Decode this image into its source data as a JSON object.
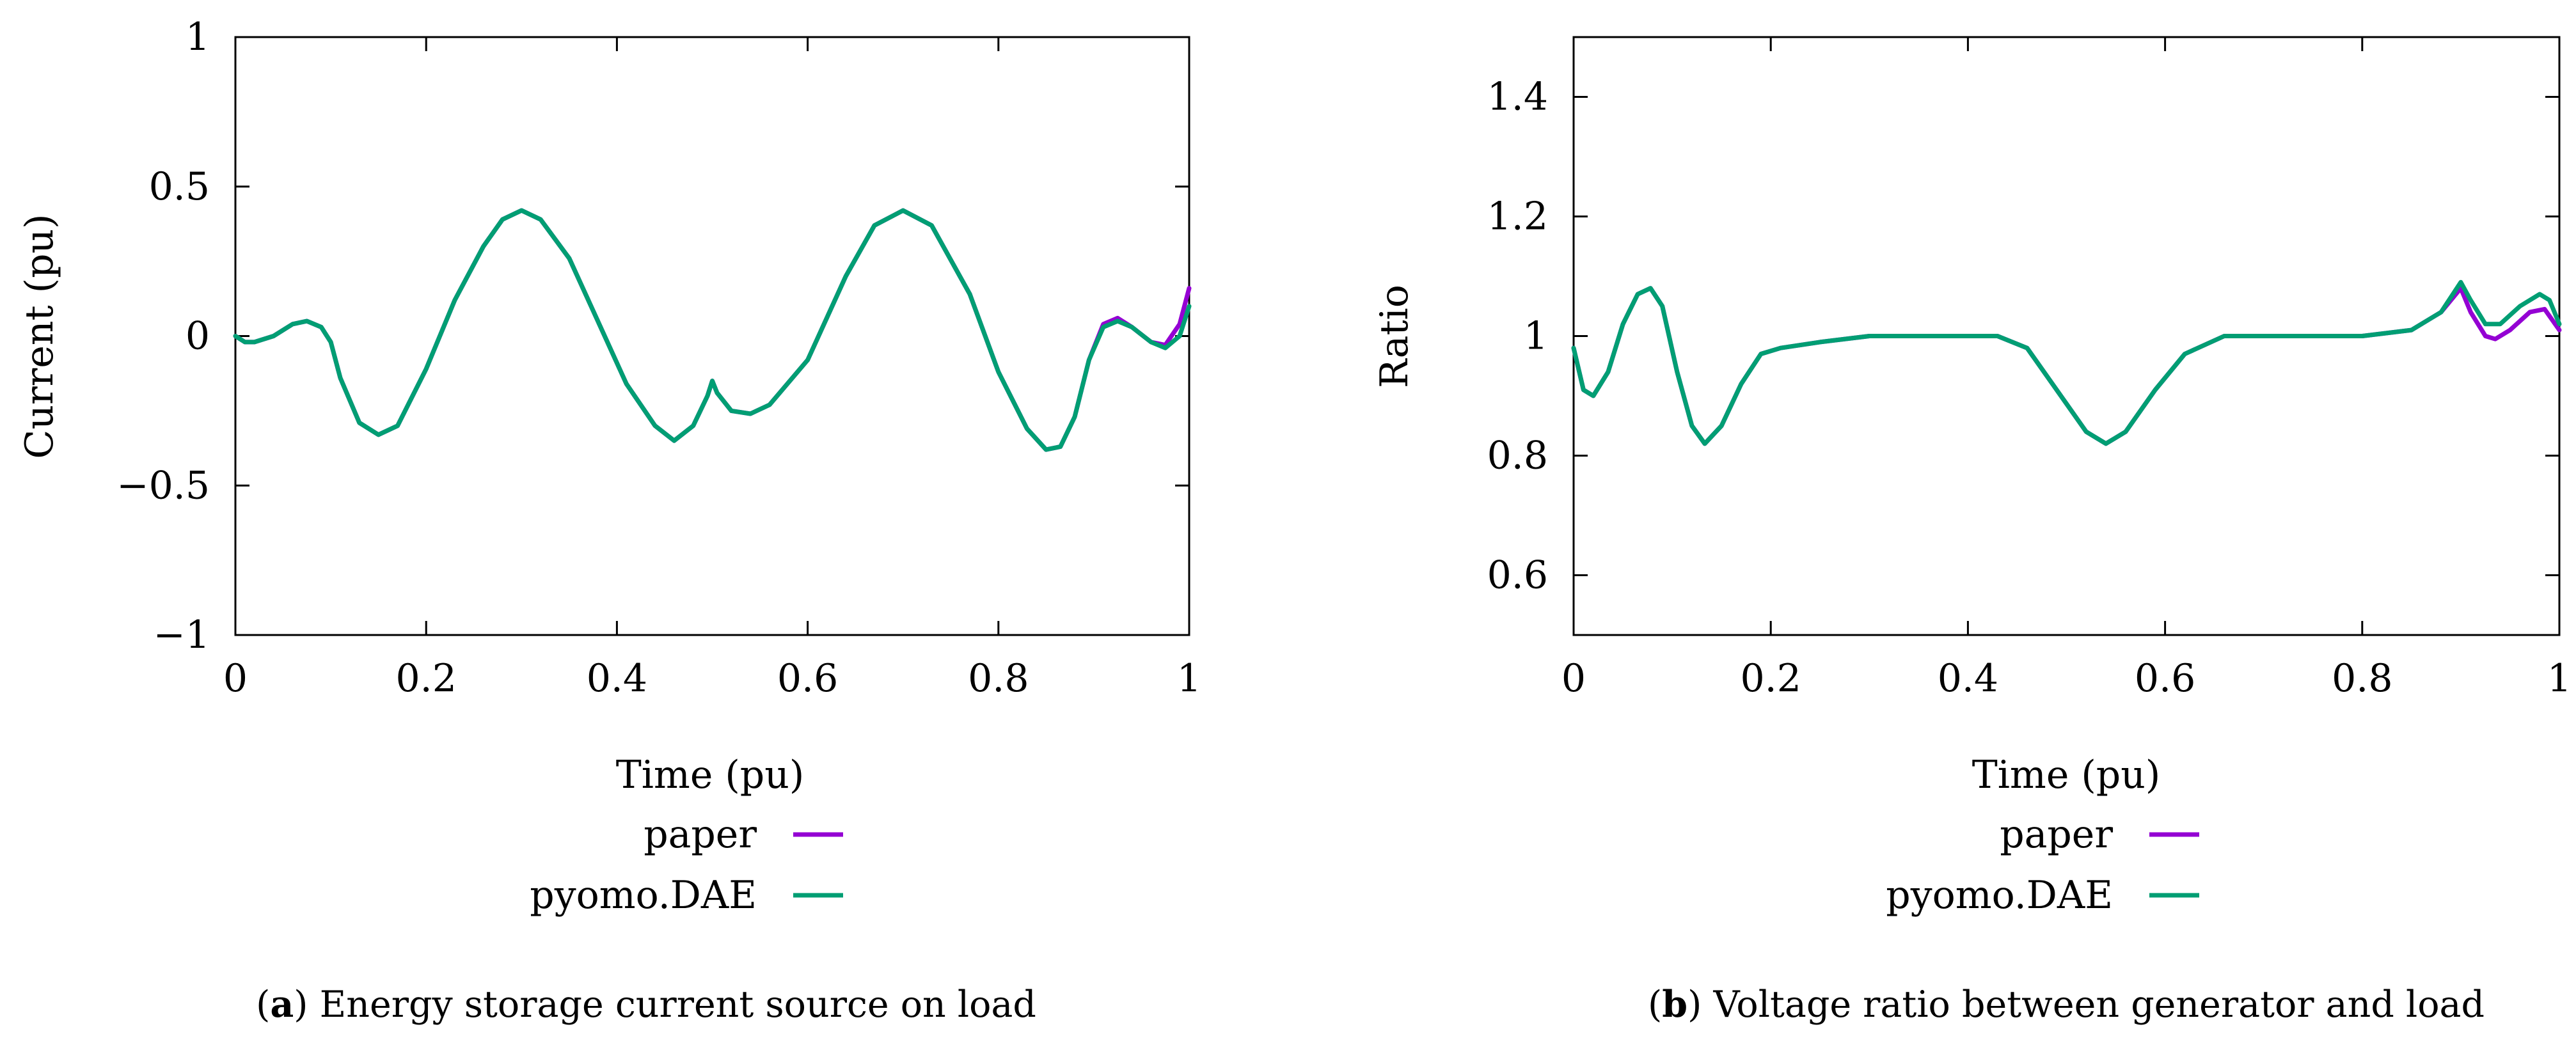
{
  "chart_data": [
    {
      "type": "line",
      "panel": "a",
      "xlabel": "Time (pu)",
      "ylabel": "Current (pu)",
      "xlim": [
        0,
        1
      ],
      "ylim": [
        -1,
        1
      ],
      "xticks": [
        0,
        0.2,
        0.4,
        0.6,
        0.8,
        1
      ],
      "xtick_labels": [
        "0",
        "0.2",
        "0.4",
        "0.6",
        "0.8",
        "1"
      ],
      "yticks": [
        -1,
        -0.5,
        0,
        0.5,
        1
      ],
      "ytick_labels": [
        "−1",
        "−0.5",
        "0",
        "0.5",
        "1"
      ],
      "caption_letter": "a",
      "caption_text": " Energy storage current source on load",
      "series": [
        {
          "name": "paper",
          "color": "#9400d3",
          "points": [
            [
              0,
              0
            ],
            [
              0.01,
              -0.02
            ],
            [
              0.02,
              -0.02
            ],
            [
              0.04,
              0.0
            ],
            [
              0.06,
              0.04
            ],
            [
              0.075,
              0.05
            ],
            [
              0.09,
              0.03
            ],
            [
              0.1,
              -0.02
            ],
            [
              0.11,
              -0.14
            ],
            [
              0.13,
              -0.29
            ],
            [
              0.15,
              -0.33
            ],
            [
              0.17,
              -0.3
            ],
            [
              0.2,
              -0.11
            ],
            [
              0.23,
              0.12
            ],
            [
              0.26,
              0.3
            ],
            [
              0.28,
              0.39
            ],
            [
              0.3,
              0.42
            ],
            [
              0.32,
              0.39
            ],
            [
              0.35,
              0.26
            ],
            [
              0.38,
              0.05
            ],
            [
              0.41,
              -0.16
            ],
            [
              0.44,
              -0.3
            ],
            [
              0.46,
              -0.35
            ],
            [
              0.48,
              -0.3
            ],
            [
              0.495,
              -0.2
            ],
            [
              0.5,
              -0.15
            ],
            [
              0.505,
              -0.19
            ],
            [
              0.52,
              -0.25
            ],
            [
              0.54,
              -0.26
            ],
            [
              0.56,
              -0.23
            ],
            [
              0.6,
              -0.08
            ],
            [
              0.64,
              0.2
            ],
            [
              0.67,
              0.37
            ],
            [
              0.7,
              0.42
            ],
            [
              0.73,
              0.37
            ],
            [
              0.77,
              0.14
            ],
            [
              0.8,
              -0.12
            ],
            [
              0.83,
              -0.31
            ],
            [
              0.85,
              -0.38
            ],
            [
              0.865,
              -0.37
            ],
            [
              0.88,
              -0.27
            ],
            [
              0.895,
              -0.08
            ],
            [
              0.91,
              0.04
            ],
            [
              0.925,
              0.06
            ],
            [
              0.94,
              0.03
            ],
            [
              0.96,
              -0.02
            ],
            [
              0.975,
              -0.03
            ],
            [
              0.99,
              0.04
            ],
            [
              1.0,
              0.16
            ]
          ]
        },
        {
          "name": "pyomo.DAE",
          "color": "#009e73",
          "points": [
            [
              0,
              0
            ],
            [
              0.01,
              -0.02
            ],
            [
              0.02,
              -0.02
            ],
            [
              0.04,
              0.0
            ],
            [
              0.06,
              0.04
            ],
            [
              0.075,
              0.05
            ],
            [
              0.09,
              0.03
            ],
            [
              0.1,
              -0.02
            ],
            [
              0.11,
              -0.14
            ],
            [
              0.13,
              -0.29
            ],
            [
              0.15,
              -0.33
            ],
            [
              0.17,
              -0.3
            ],
            [
              0.2,
              -0.11
            ],
            [
              0.23,
              0.12
            ],
            [
              0.26,
              0.3
            ],
            [
              0.28,
              0.39
            ],
            [
              0.3,
              0.42
            ],
            [
              0.32,
              0.39
            ],
            [
              0.35,
              0.26
            ],
            [
              0.38,
              0.05
            ],
            [
              0.41,
              -0.16
            ],
            [
              0.44,
              -0.3
            ],
            [
              0.46,
              -0.35
            ],
            [
              0.48,
              -0.3
            ],
            [
              0.495,
              -0.2
            ],
            [
              0.5,
              -0.15
            ],
            [
              0.505,
              -0.19
            ],
            [
              0.52,
              -0.25
            ],
            [
              0.54,
              -0.26
            ],
            [
              0.56,
              -0.23
            ],
            [
              0.6,
              -0.08
            ],
            [
              0.64,
              0.2
            ],
            [
              0.67,
              0.37
            ],
            [
              0.7,
              0.42
            ],
            [
              0.73,
              0.37
            ],
            [
              0.77,
              0.14
            ],
            [
              0.8,
              -0.12
            ],
            [
              0.83,
              -0.31
            ],
            [
              0.85,
              -0.38
            ],
            [
              0.865,
              -0.37
            ],
            [
              0.88,
              -0.27
            ],
            [
              0.895,
              -0.08
            ],
            [
              0.91,
              0.03
            ],
            [
              0.925,
              0.05
            ],
            [
              0.94,
              0.03
            ],
            [
              0.96,
              -0.02
            ],
            [
              0.975,
              -0.04
            ],
            [
              0.99,
              0.0
            ],
            [
              1.0,
              0.1
            ]
          ]
        }
      ]
    },
    {
      "type": "line",
      "panel": "b",
      "xlabel": "Time (pu)",
      "ylabel": "Ratio",
      "xlim": [
        0,
        1
      ],
      "ylim": [
        0.5,
        1.5
      ],
      "xticks": [
        0,
        0.2,
        0.4,
        0.6,
        0.8,
        1
      ],
      "xtick_labels": [
        "0",
        "0.2",
        "0.4",
        "0.6",
        "0.8",
        "1"
      ],
      "yticks": [
        0.6,
        0.8,
        1.0,
        1.2,
        1.4
      ],
      "ytick_labels": [
        "0.6",
        "0.8",
        "1",
        "1.2",
        "1.4"
      ],
      "caption_letter": "b",
      "caption_text": " Voltage ratio between generator and load",
      "series": [
        {
          "name": "paper",
          "color": "#9400d3",
          "points": [
            [
              0,
              0.98
            ],
            [
              0.01,
              0.91
            ],
            [
              0.02,
              0.9
            ],
            [
              0.035,
              0.94
            ],
            [
              0.05,
              1.02
            ],
            [
              0.065,
              1.07
            ],
            [
              0.078,
              1.08
            ],
            [
              0.09,
              1.05
            ],
            [
              0.105,
              0.94
            ],
            [
              0.12,
              0.85
            ],
            [
              0.133,
              0.82
            ],
            [
              0.15,
              0.85
            ],
            [
              0.17,
              0.92
            ],
            [
              0.19,
              0.97
            ],
            [
              0.21,
              0.98
            ],
            [
              0.25,
              0.99
            ],
            [
              0.3,
              1.0
            ],
            [
              0.35,
              1.0
            ],
            [
              0.43,
              1.0
            ],
            [
              0.46,
              0.98
            ],
            [
              0.49,
              0.91
            ],
            [
              0.52,
              0.84
            ],
            [
              0.54,
              0.82
            ],
            [
              0.56,
              0.84
            ],
            [
              0.59,
              0.91
            ],
            [
              0.62,
              0.97
            ],
            [
              0.66,
              1.0
            ],
            [
              0.7,
              1.0
            ],
            [
              0.8,
              1.0
            ],
            [
              0.85,
              1.01
            ],
            [
              0.88,
              1.04
            ],
            [
              0.9,
              1.08
            ],
            [
              0.91,
              1.04
            ],
            [
              0.925,
              1.0
            ],
            [
              0.935,
              0.995
            ],
            [
              0.95,
              1.01
            ],
            [
              0.97,
              1.04
            ],
            [
              0.985,
              1.045
            ],
            [
              1.0,
              1.01
            ]
          ]
        },
        {
          "name": "pyomo.DAE",
          "color": "#009e73",
          "points": [
            [
              0,
              0.98
            ],
            [
              0.01,
              0.91
            ],
            [
              0.02,
              0.9
            ],
            [
              0.035,
              0.94
            ],
            [
              0.05,
              1.02
            ],
            [
              0.065,
              1.07
            ],
            [
              0.078,
              1.08
            ],
            [
              0.09,
              1.05
            ],
            [
              0.105,
              0.94
            ],
            [
              0.12,
              0.85
            ],
            [
              0.133,
              0.82
            ],
            [
              0.15,
              0.85
            ],
            [
              0.17,
              0.92
            ],
            [
              0.19,
              0.97
            ],
            [
              0.21,
              0.98
            ],
            [
              0.25,
              0.99
            ],
            [
              0.3,
              1.0
            ],
            [
              0.35,
              1.0
            ],
            [
              0.43,
              1.0
            ],
            [
              0.46,
              0.98
            ],
            [
              0.49,
              0.91
            ],
            [
              0.52,
              0.84
            ],
            [
              0.54,
              0.82
            ],
            [
              0.56,
              0.84
            ],
            [
              0.59,
              0.91
            ],
            [
              0.62,
              0.97
            ],
            [
              0.66,
              1.0
            ],
            [
              0.7,
              1.0
            ],
            [
              0.8,
              1.0
            ],
            [
              0.85,
              1.01
            ],
            [
              0.88,
              1.04
            ],
            [
              0.9,
              1.09
            ],
            [
              0.91,
              1.06
            ],
            [
              0.925,
              1.02
            ],
            [
              0.94,
              1.02
            ],
            [
              0.96,
              1.05
            ],
            [
              0.98,
              1.07
            ],
            [
              0.99,
              1.06
            ],
            [
              1.0,
              1.02
            ]
          ]
        }
      ]
    }
  ]
}
